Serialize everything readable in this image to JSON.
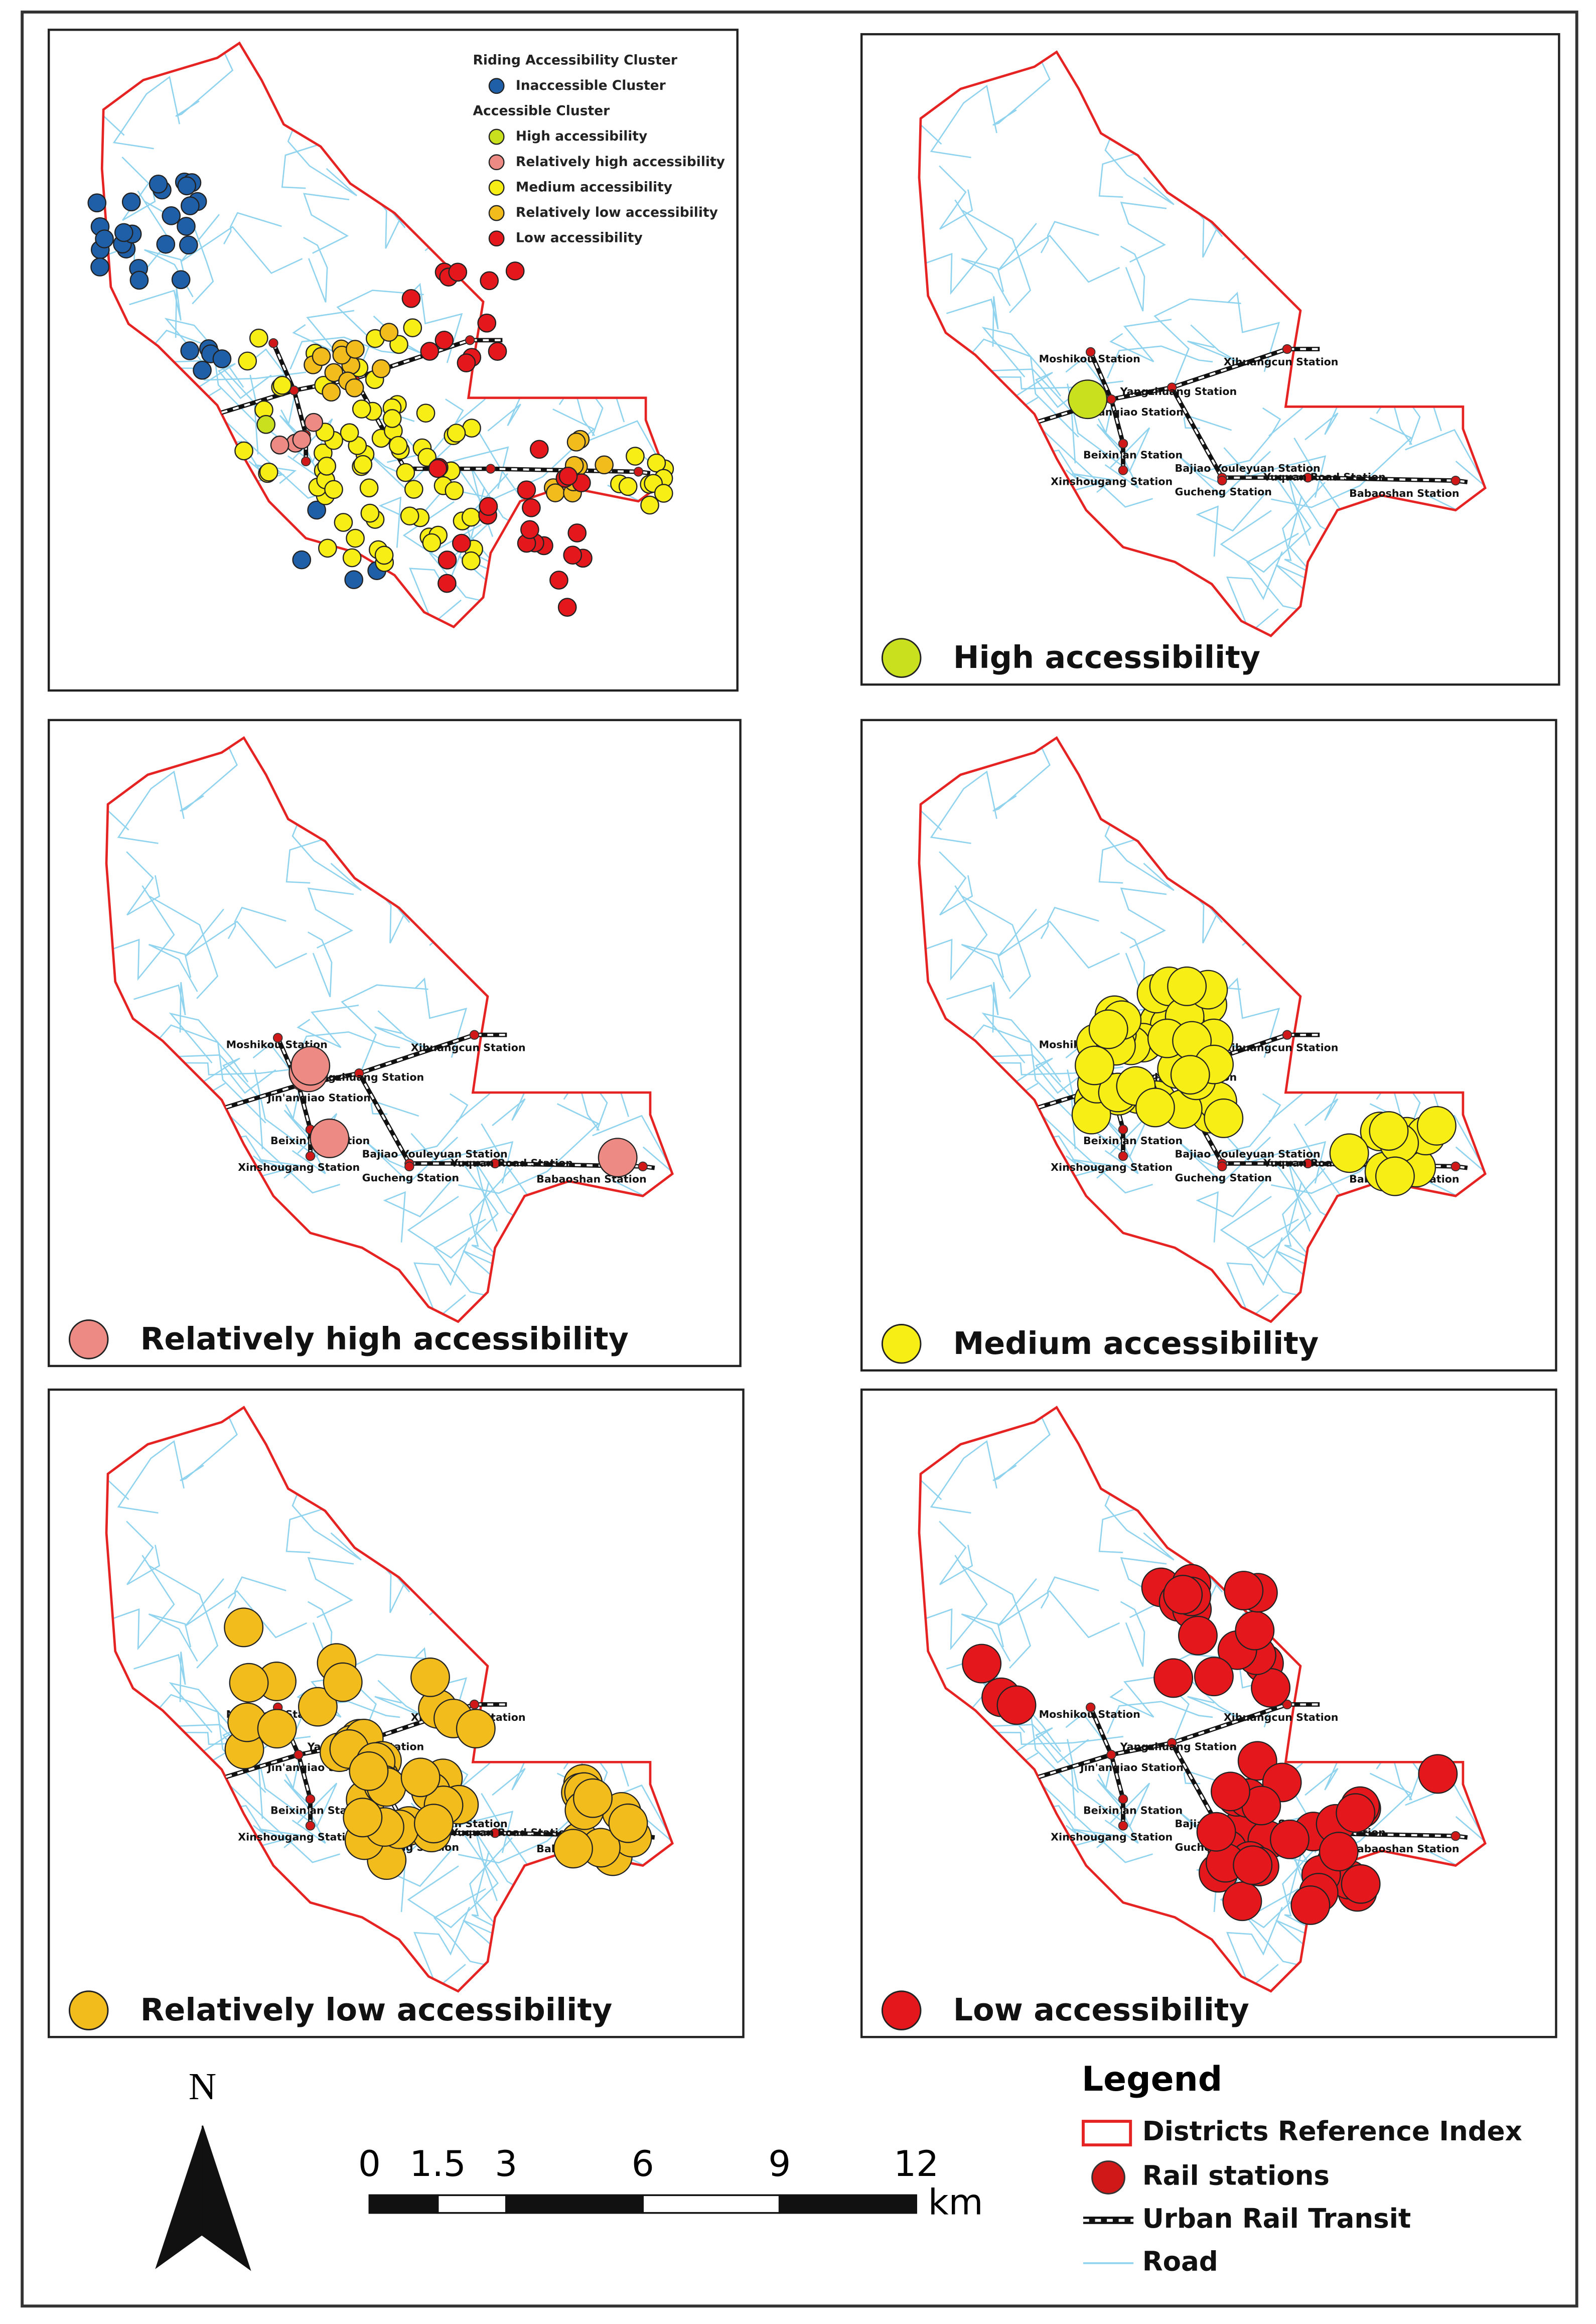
{
  "overview_legend": {
    "title": "Riding Accessibility Cluster",
    "items": [
      {
        "label": "Inaccessible Cluster",
        "color": "#1f5fa8"
      },
      {
        "label": "Accessible Cluster"
      },
      {
        "label": "High accessibility",
        "color": "#c8e01e"
      },
      {
        "label": "Relatively high accessibility",
        "color": "#ee8a84"
      },
      {
        "label": "Medium accessibility",
        "color": "#f7ee16"
      },
      {
        "label": "Relatively low accessibility",
        "color": "#f2bd1c"
      },
      {
        "label": "Low accessibility",
        "color": "#e3171c"
      }
    ]
  },
  "panels": [
    {
      "title": "High accessibility",
      "color": "#c8e01e"
    },
    {
      "title": "Relatively high accessibility",
      "color": "#ee8a84"
    },
    {
      "title": "Medium accessibility",
      "color": "#f7ee16"
    },
    {
      "title": "Relatively low accessibility",
      "color": "#f2bd1c"
    },
    {
      "title": "Low accessibility",
      "color": "#e3171c"
    }
  ],
  "stations": [
    {
      "name": "Moshikou Station"
    },
    {
      "name": "Xihuangcun Station"
    },
    {
      "name": "Yangzhuang Station"
    },
    {
      "name": "Jin'anqiao Station"
    },
    {
      "name": "Beixin'an Station"
    },
    {
      "name": "Xinshougang Station"
    },
    {
      "name": "Bajiao Youleyuan Station"
    },
    {
      "name": "Gucheng Station"
    },
    {
      "name": "Yuquan Road Station"
    },
    {
      "name": "Babaoshan Station"
    }
  ],
  "legend": {
    "title": "Legend",
    "items": [
      "Districts Reference Index",
      "Rail stations",
      "Urban Rail Transit",
      "Road"
    ]
  },
  "north": "N",
  "scale_bar": {
    "ticks": [
      0,
      1.5,
      3,
      6,
      9,
      12
    ],
    "unit": "km"
  }
}
